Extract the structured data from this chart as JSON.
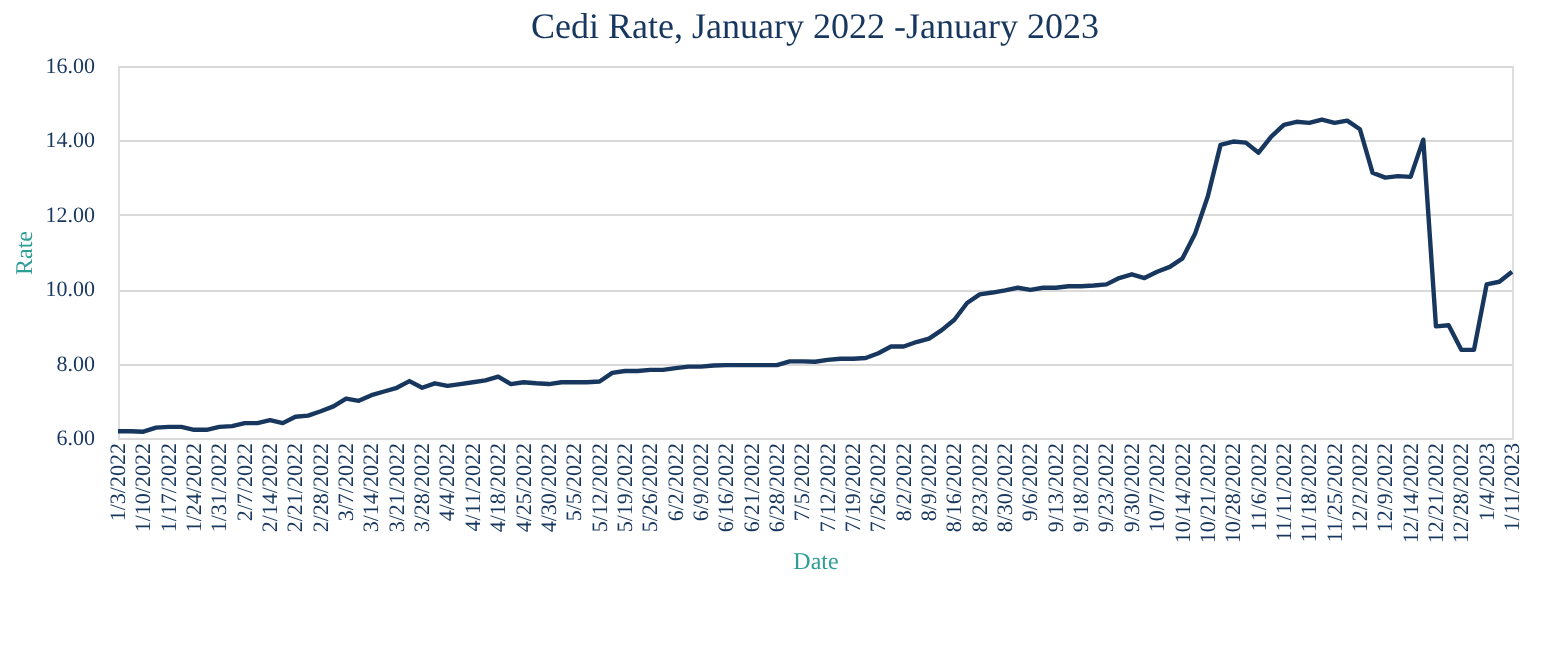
{
  "chart_data": {
    "type": "line",
    "title": "Cedi Rate, January 2022 -January 2023",
    "xlabel": "Date",
    "ylabel": "Rate",
    "categories": [
      "1/3/2022",
      null,
      "1/10/2022",
      null,
      "1/17/2022",
      null,
      "1/24/2022",
      null,
      "1/31/2022",
      null,
      "2/7/2022",
      null,
      "2/14/2022",
      null,
      "2/21/2022",
      null,
      "2/28/2022",
      null,
      "3/7/2022",
      null,
      "3/14/2022",
      null,
      "3/21/2022",
      null,
      "3/28/2022",
      null,
      "4/4/2022",
      null,
      "4/11/2022",
      null,
      "4/18/2022",
      null,
      "4/25/2022",
      null,
      "4/30/2022",
      null,
      "5/5/2022",
      null,
      "5/12/2022",
      null,
      "5/19/2022",
      null,
      "5/26/2022",
      null,
      "6/2/2022",
      null,
      "6/9/2022",
      null,
      "6/16/2022",
      null,
      "6/21/2022",
      null,
      "6/28/2022",
      null,
      "7/5/2022",
      null,
      "7/12/2022",
      null,
      "7/19/2022",
      null,
      "7/26/2022",
      null,
      "8/2/2022",
      null,
      "8/9/2022",
      null,
      "8/16/2022",
      null,
      "8/23/2022",
      null,
      "8/30/2022",
      null,
      "9/6/2022",
      null,
      "9/13/2022",
      null,
      "9/18/2022",
      null,
      "9/23/2022",
      null,
      "9/30/2022",
      null,
      "10/7/2022",
      null,
      "10/14/2022",
      null,
      "10/21/2022",
      null,
      "10/28/2022",
      null,
      "11/6/2022",
      null,
      "11/11/2022",
      null,
      "11/18/2022",
      null,
      "11/25/2022",
      null,
      "12/2/2022",
      null,
      "12/9/2022",
      null,
      "12/14/2022",
      null,
      "12/21/2022",
      null,
      "12/28/2022",
      null,
      "1/4/2023",
      null,
      "1/11/2023"
    ],
    "series": [
      {
        "color": "#17375e",
        "values": [
          6.18,
          6.18,
          6.17,
          6.28,
          6.3,
          6.3,
          6.22,
          6.22,
          6.3,
          6.32,
          6.4,
          6.4,
          6.48,
          6.4,
          6.57,
          6.6,
          6.72,
          6.85,
          7.06,
          7.0,
          7.15,
          7.25,
          7.35,
          7.53,
          7.35,
          7.47,
          7.4,
          7.45,
          7.5,
          7.55,
          7.65,
          7.45,
          7.5,
          7.47,
          7.45,
          7.5,
          7.5,
          7.5,
          7.52,
          7.75,
          7.8,
          7.8,
          7.83,
          7.83,
          7.88,
          7.92,
          7.92,
          7.95,
          7.96,
          7.96,
          7.96,
          7.96,
          7.96,
          8.06,
          8.06,
          8.05,
          8.1,
          8.13,
          8.13,
          8.15,
          8.28,
          8.46,
          8.46,
          8.58,
          8.67,
          8.9,
          9.18,
          9.63,
          9.86,
          9.91,
          9.97,
          10.04,
          9.98,
          10.04,
          10.04,
          10.08,
          10.08,
          10.1,
          10.13,
          10.3,
          10.4,
          10.3,
          10.47,
          10.6,
          10.83,
          11.5,
          12.5,
          13.88,
          13.97,
          13.94,
          13.67,
          14.1,
          14.42,
          14.5,
          14.47,
          14.56,
          14.47,
          14.53,
          14.3,
          13.13,
          13.0,
          13.04,
          13.02,
          14.02,
          9.0,
          9.03,
          8.37,
          8.37,
          10.13,
          10.2,
          10.47
        ]
      }
    ],
    "ylim": [
      6,
      16
    ],
    "yticks": [
      {
        "value": 6,
        "label": "6.00"
      },
      {
        "value": 8,
        "label": "8.00"
      },
      {
        "value": 10,
        "label": "10.00"
      },
      {
        "value": 12,
        "label": "12.00"
      },
      {
        "value": 14,
        "label": "14.00"
      },
      {
        "value": 16,
        "label": "16.00"
      }
    ],
    "grid": "y",
    "legend": false,
    "marker": "none",
    "line_style": "solid"
  }
}
